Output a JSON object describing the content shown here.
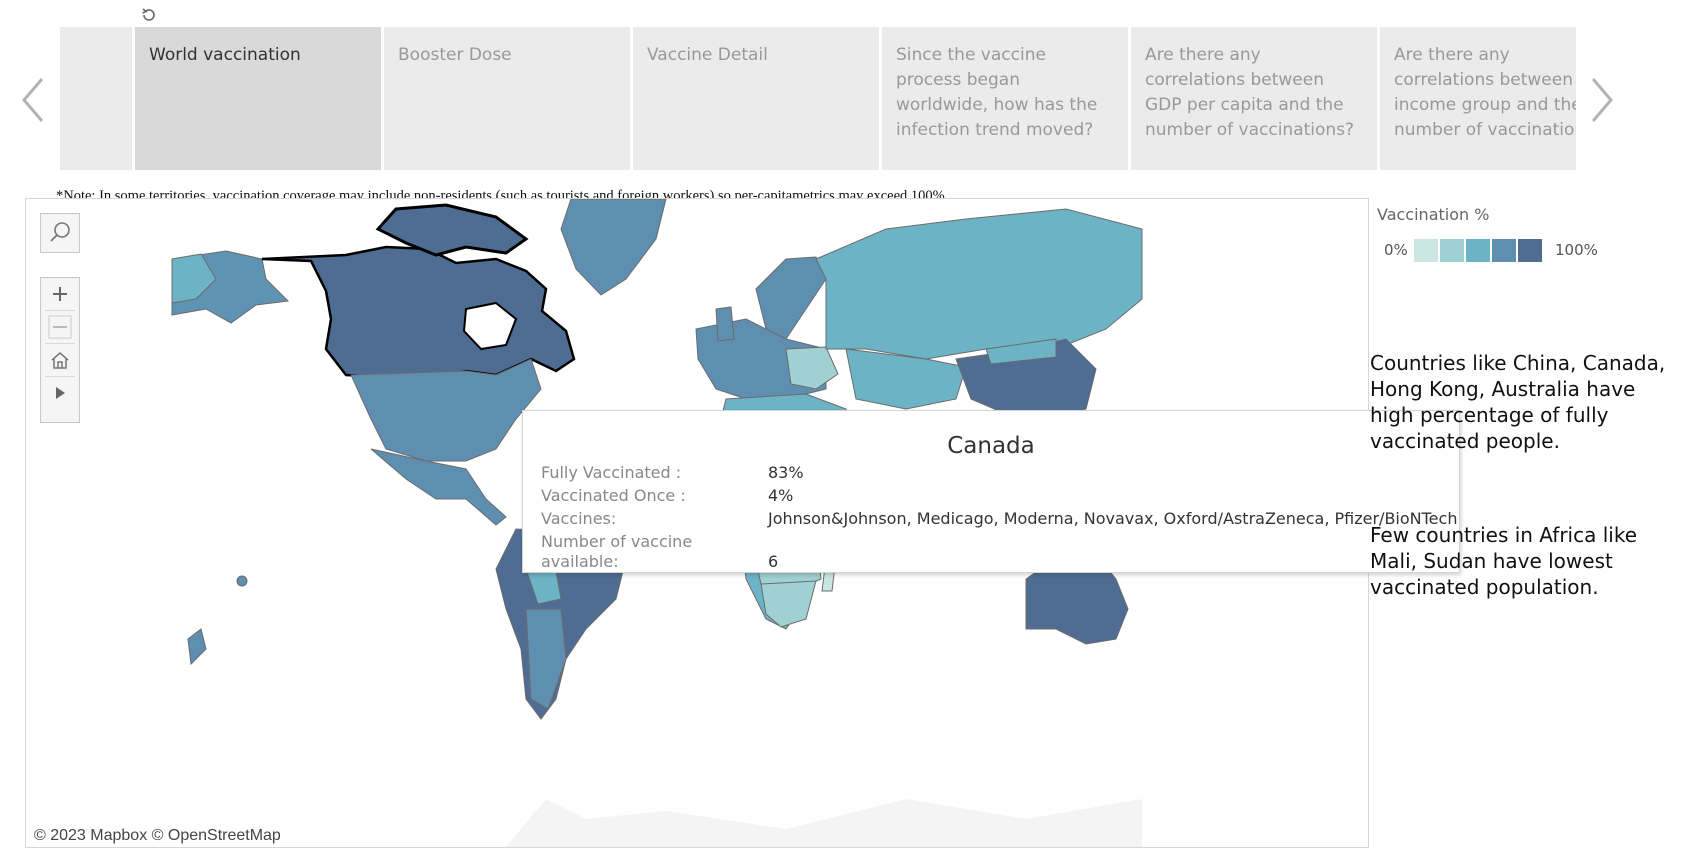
{
  "story": {
    "points": [
      {
        "label": "",
        "active": false
      },
      {
        "label": "World vaccination",
        "active": true
      },
      {
        "label": "Booster Dose",
        "active": false
      },
      {
        "label": "Vaccine Detail",
        "active": false
      },
      {
        "label": "Since the vaccine process began worldwide, how has the infection trend moved?",
        "active": false
      },
      {
        "label": "Are there any correlations between GDP per capita and the number of vaccinations?",
        "active": false
      },
      {
        "label": "Are there any correlations between income group and the number of vaccinations?",
        "active": false
      }
    ]
  },
  "note": "*Note: In some territories, vaccination coverage may include non-residents (such as tourists and foreign workers) so per-capitametrics may exceed 100%.",
  "map": {
    "attribution": "© 2023 Mapbox  © OpenStreetMap",
    "highlighted_country": "Canada"
  },
  "tooltip": {
    "title": "Canada",
    "rows": [
      {
        "label": "Fully Vaccinated :",
        "value": "83%"
      },
      {
        "label": "Vaccinated Once :",
        "value": "4%"
      },
      {
        "label": "Vaccines:",
        "value": "Johnson&Johnson, Medicago, Moderna, Novavax, Oxford/AstraZeneca, Pfizer/BioNTech"
      },
      {
        "label": "Number of vaccine available:",
        "value": "6"
      }
    ]
  },
  "legend": {
    "title": "Vaccination %",
    "min_label": "0%",
    "max_label": "100%",
    "colors": [
      "#c9e6e1",
      "#9fd0d2",
      "#6db3c6",
      "#5f8fb0",
      "#4f6d93"
    ]
  },
  "annotations": [
    "Countries like China, Canada, Hong Kong, Australia have high percentage of fully vaccinated people.",
    "Few countries in Africa like Mali, Sudan have lowest vaccinated population."
  ],
  "icons": {
    "reset": "reset-icon",
    "prev": "chevron-left-icon",
    "next": "chevron-right-icon",
    "search": "search-icon",
    "zoom_in": "plus-icon",
    "zoom_out": "minus-icon",
    "home": "home-icon",
    "play": "play-icon"
  }
}
